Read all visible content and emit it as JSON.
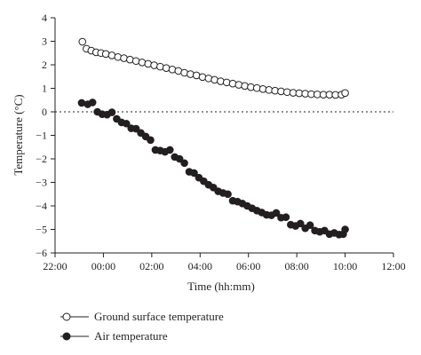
{
  "chart_data": {
    "type": "scatter",
    "xlabel": "Time (hh:mm)",
    "ylabel": "Temperature (°C)",
    "x_tick_labels": [
      "22:00",
      "00:00",
      "02:00",
      "04:00",
      "06:00",
      "08:00",
      "10:00",
      "12:00"
    ],
    "x_tick_hours": [
      22,
      24,
      26,
      28,
      30,
      32,
      34,
      36
    ],
    "xlim_hours": [
      22,
      36
    ],
    "y_ticks": [
      -6,
      -5,
      -4,
      -3,
      -2,
      -1,
      0,
      1,
      2,
      3,
      4
    ],
    "ylim": [
      -6,
      4
    ],
    "reference_line": {
      "y": 0,
      "style": "dotted"
    },
    "legend_position": "bottom-left",
    "series": [
      {
        "name": "Ground surface temperature",
        "marker": "open-circle",
        "points": [
          [
            23.13,
            2.98
          ],
          [
            23.3,
            2.68
          ],
          [
            23.5,
            2.6
          ],
          [
            23.7,
            2.53
          ],
          [
            23.9,
            2.5
          ],
          [
            24.1,
            2.46
          ],
          [
            24.35,
            2.4
          ],
          [
            24.6,
            2.33
          ],
          [
            24.85,
            2.28
          ],
          [
            25.1,
            2.22
          ],
          [
            25.35,
            2.16
          ],
          [
            25.6,
            2.1
          ],
          [
            25.85,
            2.04
          ],
          [
            26.1,
            1.98
          ],
          [
            26.35,
            1.92
          ],
          [
            26.6,
            1.86
          ],
          [
            26.85,
            1.8
          ],
          [
            27.1,
            1.74
          ],
          [
            27.35,
            1.66
          ],
          [
            27.6,
            1.6
          ],
          [
            27.85,
            1.55
          ],
          [
            28.1,
            1.48
          ],
          [
            28.35,
            1.42
          ],
          [
            28.6,
            1.36
          ],
          [
            28.85,
            1.3
          ],
          [
            29.1,
            1.25
          ],
          [
            29.35,
            1.2
          ],
          [
            29.6,
            1.15
          ],
          [
            29.85,
            1.1
          ],
          [
            30.1,
            1.05
          ],
          [
            30.35,
            1.01
          ],
          [
            30.6,
            0.97
          ],
          [
            30.85,
            0.93
          ],
          [
            31.1,
            0.9
          ],
          [
            31.35,
            0.87
          ],
          [
            31.6,
            0.84
          ],
          [
            31.85,
            0.81
          ],
          [
            32.1,
            0.79
          ],
          [
            32.35,
            0.77
          ],
          [
            32.6,
            0.75
          ],
          [
            32.85,
            0.74
          ],
          [
            33.1,
            0.73
          ],
          [
            33.35,
            0.73
          ],
          [
            33.6,
            0.72
          ],
          [
            33.85,
            0.73
          ],
          [
            34.0,
            0.8
          ]
        ]
      },
      {
        "name": "Air temperature",
        "marker": "filled-circle",
        "points": [
          [
            23.1,
            0.38
          ],
          [
            23.35,
            0.32
          ],
          [
            23.55,
            0.4
          ],
          [
            23.75,
            0.0
          ],
          [
            23.95,
            -0.1
          ],
          [
            24.15,
            -0.12
          ],
          [
            24.35,
            -0.02
          ],
          [
            24.55,
            -0.3
          ],
          [
            24.75,
            -0.45
          ],
          [
            24.95,
            -0.5
          ],
          [
            25.15,
            -0.7
          ],
          [
            25.35,
            -0.72
          ],
          [
            25.55,
            -0.9
          ],
          [
            25.75,
            -1.05
          ],
          [
            25.95,
            -1.2
          ],
          [
            26.15,
            -1.62
          ],
          [
            26.35,
            -1.65
          ],
          [
            26.55,
            -1.7
          ],
          [
            26.75,
            -1.62
          ],
          [
            26.95,
            -1.92
          ],
          [
            27.15,
            -2.0
          ],
          [
            27.35,
            -2.18
          ],
          [
            27.55,
            -2.55
          ],
          [
            27.75,
            -2.6
          ],
          [
            27.95,
            -2.8
          ],
          [
            28.15,
            -2.95
          ],
          [
            28.35,
            -3.1
          ],
          [
            28.55,
            -3.22
          ],
          [
            28.75,
            -3.38
          ],
          [
            28.95,
            -3.45
          ],
          [
            29.15,
            -3.5
          ],
          [
            29.35,
            -3.78
          ],
          [
            29.55,
            -3.82
          ],
          [
            29.75,
            -3.9
          ],
          [
            29.95,
            -4.0
          ],
          [
            30.15,
            -4.1
          ],
          [
            30.35,
            -4.2
          ],
          [
            30.55,
            -4.28
          ],
          [
            30.75,
            -4.38
          ],
          [
            30.95,
            -4.4
          ],
          [
            31.15,
            -4.3
          ],
          [
            31.35,
            -4.5
          ],
          [
            31.55,
            -4.48
          ],
          [
            31.75,
            -4.8
          ],
          [
            31.95,
            -4.85
          ],
          [
            32.15,
            -4.75
          ],
          [
            32.35,
            -4.95
          ],
          [
            32.55,
            -4.82
          ],
          [
            32.75,
            -5.05
          ],
          [
            32.95,
            -5.1
          ],
          [
            33.15,
            -5.05
          ],
          [
            33.35,
            -5.2
          ],
          [
            33.55,
            -5.15
          ],
          [
            33.75,
            -5.22
          ],
          [
            33.92,
            -5.2
          ],
          [
            34.0,
            -5.0
          ]
        ]
      }
    ]
  }
}
